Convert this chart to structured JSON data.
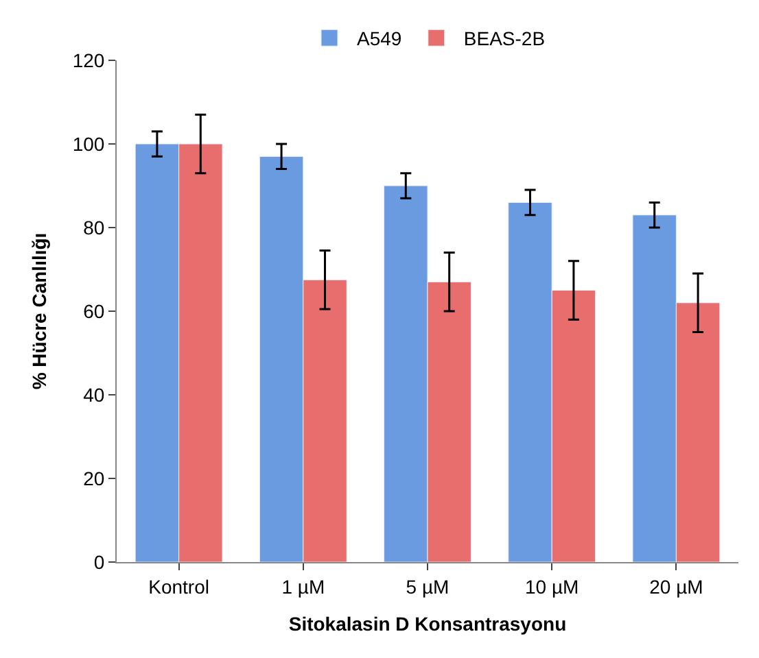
{
  "chart_data": {
    "type": "bar",
    "xlabel": "Sitokalasin D Konsantrasyonu",
    "ylabel": "% Hücre Canlılığı",
    "categories": [
      "Kontrol",
      "1 µM",
      "5 µM",
      "10 µM",
      "20 µM"
    ],
    "series": [
      {
        "name": "A549",
        "color": "#6a9be0",
        "values": [
          100,
          97,
          90,
          86,
          83
        ],
        "errors": [
          3,
          3,
          3,
          3,
          3
        ]
      },
      {
        "name": "BEAS-2B",
        "color": "#e86e6e",
        "values": [
          100,
          67.5,
          67,
          65,
          62
        ],
        "errors": [
          7,
          7,
          7,
          7,
          7
        ]
      }
    ],
    "ylim": [
      0,
      120
    ],
    "yticks": [
      0,
      20,
      40,
      60,
      80,
      100,
      120
    ],
    "legend": "top"
  }
}
